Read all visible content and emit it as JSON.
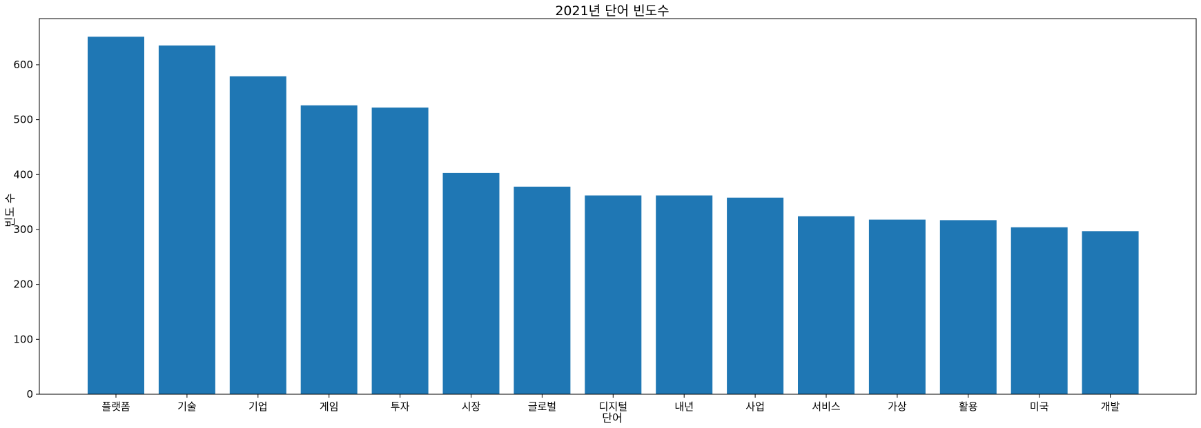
{
  "chart_data": {
    "type": "bar",
    "title": "2021년 단어 빈도수",
    "xlabel": "단어",
    "ylabel": "빈도 수",
    "categories": [
      "플랫폼",
      "기술",
      "기업",
      "게임",
      "투자",
      "시장",
      "글로벌",
      "디지털",
      "내년",
      "사업",
      "서비스",
      "가상",
      "활용",
      "미국",
      "개발"
    ],
    "values": [
      651,
      635,
      579,
      526,
      522,
      403,
      378,
      362,
      362,
      358,
      324,
      318,
      317,
      304,
      297
    ],
    "ylim": [
      0,
      684
    ],
    "yticks": [
      0,
      100,
      200,
      300,
      400,
      500,
      600
    ],
    "grid": false,
    "bar_color": "#1f77b4"
  }
}
